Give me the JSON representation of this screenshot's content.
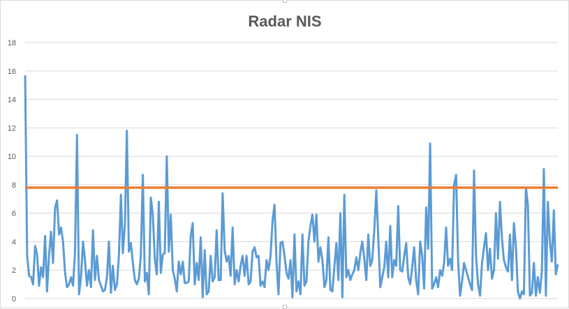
{
  "chart_data": {
    "type": "line",
    "title": "Radar NIS",
    "xlabel": "",
    "ylabel": "",
    "ylim": [
      0,
      18
    ],
    "y_ticks": [
      "0",
      "2",
      "4",
      "6",
      "8",
      "10",
      "12",
      "14",
      "16",
      "18"
    ],
    "grid": true,
    "legend": "none",
    "series": [
      {
        "color": "#5b9bd5",
        "values": [
          15.7,
          3.0,
          1.6,
          1.5,
          1.0,
          3.7,
          3.1,
          0.9,
          2.2,
          1.5,
          4.4,
          0.5,
          3.1,
          4.7,
          2.5,
          6.4,
          6.9,
          4.5,
          5.0,
          4.0,
          1.8,
          0.8,
          1.0,
          1.5,
          0.9,
          3.2,
          11.5,
          0.3,
          1.5,
          4.0,
          2.7,
          0.9,
          2.0,
          0.8,
          4.8,
          1.3,
          3.0,
          1.3,
          0.9,
          0.5,
          0.6,
          1.5,
          4.0,
          0.4,
          2.3,
          0.6,
          1.0,
          3.0,
          7.3,
          3.2,
          5.2,
          11.8,
          3.3,
          3.9,
          2.5,
          1.3,
          1.0,
          1.4,
          3.0,
          8.7,
          1.2,
          1.8,
          0.3,
          7.1,
          5.9,
          2.8,
          1.7,
          6.8,
          1.8,
          3.1,
          3.2,
          10.0,
          3.3,
          5.9,
          2.0,
          1.4,
          0.5,
          2.6,
          1.7,
          2.6,
          1.1,
          1.1,
          1.2,
          4.4,
          5.3,
          1.0,
          2.5,
          1.3,
          4.3,
          0.1,
          3.4,
          0.3,
          0.5,
          3.0,
          1.2,
          1.5,
          4.8,
          1.3,
          1.3,
          7.4,
          3.4,
          2.6,
          3.0,
          1.6,
          5.0,
          1.0,
          2.0,
          1.2,
          2.3,
          3.0,
          1.6,
          3.0,
          1.0,
          1.2,
          3.3,
          3.6,
          2.9,
          3.0,
          0.9,
          1.2,
          0.8,
          2.7,
          2.0,
          3.0,
          5.5,
          6.6,
          2.5,
          0.3,
          3.9,
          4.0,
          3.0,
          1.8,
          1.4,
          2.7,
          0.1,
          4.5,
          0.5,
          1.2,
          0.3,
          4.5,
          0.9,
          1.2,
          4.0,
          5.1,
          5.9,
          4.0,
          5.9,
          2.6,
          3.6,
          2.7,
          0.8,
          1.3,
          4.3,
          0.6,
          0.5,
          2.2,
          3.9,
          1.3,
          6.0,
          0.1,
          7.3,
          1.5,
          2.0,
          1.3,
          1.7,
          2.0,
          2.9,
          2.0,
          3.2,
          4.0,
          2.8,
          1.3,
          4.5,
          2.3,
          2.7,
          4.8,
          7.6,
          4.3,
          0.8,
          1.5,
          2.2,
          4.0,
          1.5,
          5.1,
          1.5,
          2.7,
          2.3,
          6.5,
          2.0,
          1.9,
          3.0,
          3.9,
          1.5,
          1.0,
          2.2,
          3.6,
          1.3,
          0.3,
          4.0,
          3.0,
          0.7,
          6.4,
          3.5,
          10.9,
          0.7,
          1.0,
          1.5,
          0.8,
          2.0,
          1.6,
          2.5,
          5.0,
          2.3,
          2.8,
          2.0,
          8.0,
          8.7,
          2.7,
          0.2,
          1.2,
          2.5,
          2.0,
          1.5,
          1.0,
          0.6,
          9.0,
          3.0,
          1.0,
          0.2,
          2.5,
          3.6,
          4.6,
          2.0,
          3.5,
          1.4,
          2.0,
          6.0,
          2.8,
          6.8,
          4.2,
          2.7,
          2.2,
          1.9,
          4.5,
          1.3,
          5.3,
          3.6,
          0.5,
          0.0,
          0.5,
          0.3,
          7.8,
          6.6,
          0.2,
          0.4,
          2.5,
          0.2,
          1.5,
          0.4,
          1.9,
          9.1,
          0.2,
          6.8,
          4.0,
          2.6,
          6.2,
          1.7,
          2.4
        ]
      },
      {
        "color": "#ed7d31",
        "values": [
          7.8,
          7.8
        ]
      }
    ]
  }
}
